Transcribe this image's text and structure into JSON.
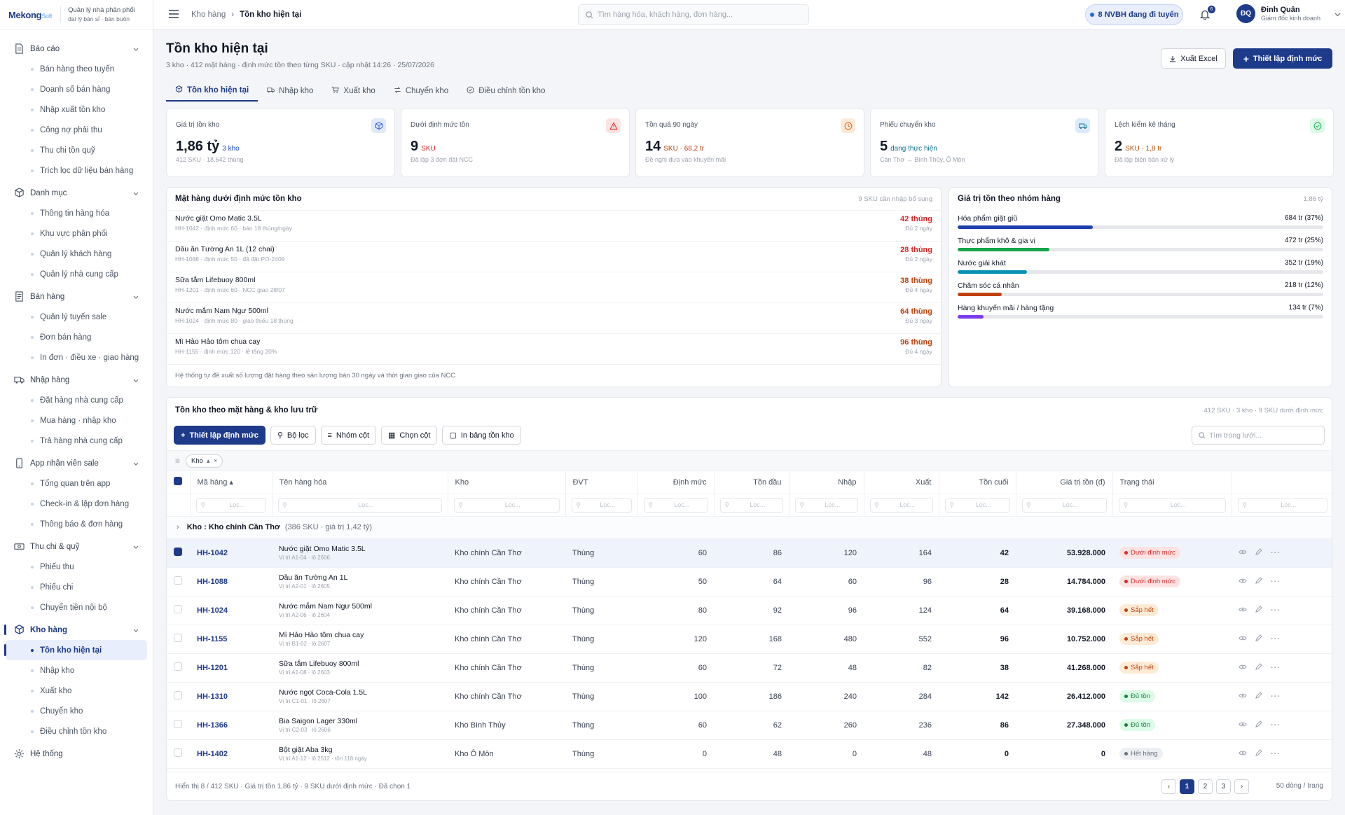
{
  "brand": {
    "name": "Mekong",
    "suffix": "Soft",
    "tag1": "Quản lý nhà phân phối",
    "tag2": "đại lý bán sỉ · bán buôn"
  },
  "sidebar": [
    {
      "label": "Báo cáo",
      "icon": "report-icon",
      "items": [
        "Bán hàng theo tuyến",
        "Doanh số bán hàng",
        "Nhập xuất tồn kho",
        "Công nợ phải thu",
        "Thu chi tồn quỹ",
        "Trích lọc dữ liệu bán hàng"
      ]
    },
    {
      "label": "Danh mục",
      "icon": "catalog-icon",
      "items": [
        "Thông tin hàng hóa",
        "Khu vực phân phối",
        "Quản lý khách hàng",
        "Quản lý nhà cung cấp"
      ]
    },
    {
      "label": "Bán hàng",
      "icon": "sales-icon",
      "items": [
        "Quản lý tuyến sale",
        "Đơn bán hàng",
        "In đơn · điều xe · giao hàng"
      ]
    },
    {
      "label": "Nhập hàng",
      "icon": "truck-icon",
      "items": [
        "Đặt hàng nhà cung cấp",
        "Mua hàng · nhập kho",
        "Trả hàng nhà cung cấp"
      ]
    },
    {
      "label": "App nhân viên sale",
      "icon": "phone-icon",
      "items": [
        "Tổng quan trên app",
        "Check-in & lập đơn hàng",
        "Thông báo & đơn hàng"
      ]
    },
    {
      "label": "Thu chi & quỹ",
      "icon": "cash-icon",
      "items": [
        "Phiếu thu",
        "Phiếu chi",
        "Chuyển tiền nội bộ"
      ]
    },
    {
      "label": "Kho hàng",
      "icon": "warehouse-icon",
      "active": true,
      "items": [
        "Tồn kho hiện tại",
        "Nhập kho",
        "Xuất kho",
        "Chuyển kho",
        "Điều chỉnh tồn kho"
      ]
    },
    {
      "label": "Hệ thống",
      "icon": "gear-icon",
      "items": []
    }
  ],
  "topbar": {
    "crumb1": "Kho hàng",
    "crumb2": "Tồn kho hiện tại",
    "search_placeholder": "Tìm hàng hóa, khách hàng, đơn hàng...",
    "status_pill": "8 NVBH đang đi tuyến",
    "notif_count": "6",
    "user_initials": "ĐQ",
    "user_name": "Đinh Quân",
    "user_role": "Giám đốc kinh doanh"
  },
  "page": {
    "title": "Tồn kho hiện tại",
    "subtitle": "3 kho · 412 mặt hàng · định mức tồn theo từng SKU · cập nhật 14:26 · 25/07/2026",
    "export_label": "Xuất Excel",
    "setup_label": "Thiết lập định mức"
  },
  "tabs": [
    {
      "label": "Tồn kho hiện tại",
      "icon": "box-icon",
      "active": true
    },
    {
      "label": "Nhập kho",
      "icon": "truck-icon"
    },
    {
      "label": "Xuất kho",
      "icon": "cart-icon"
    },
    {
      "label": "Chuyển kho",
      "icon": "transfer-icon"
    },
    {
      "label": "Điều chỉnh tồn kho",
      "icon": "check-circle-icon"
    }
  ],
  "kpis": [
    {
      "label": "Giá trị tồn kho",
      "value": "1,86 tỷ",
      "unit": "3 kho",
      "unit_color": "#1d4ed8",
      "note": "412 SKU · 18.642 thùng",
      "icon": "box-icon",
      "icon_bg": "#e0e9fb",
      "icon_color": "#1d4ed8"
    },
    {
      "label": "Dưới định mức tồn",
      "value": "9",
      "unit": "SKU",
      "unit_color": "#dc2626",
      "note": "Đã lập 3 đơn đặt NCC",
      "icon": "warning-icon",
      "icon_bg": "#fde2e2",
      "icon_color": "#dc2626"
    },
    {
      "label": "Tồn quá 90 ngày",
      "value": "14",
      "unit": "SKU · 68,2 tr",
      "unit_color": "#c2410c",
      "note": "Đề nghị đưa vào khuyến mãi",
      "icon": "clock-icon",
      "icon_bg": "#fde9d7",
      "icon_color": "#ea580c"
    },
    {
      "label": "Phiếu chuyển kho",
      "value": "5",
      "unit": "đang thực hiện",
      "unit_color": "#0e7490",
      "note": "Cần Thơ → Bình Thủy, Ô Môn",
      "icon": "truck-icon",
      "icon_bg": "#dbeafe",
      "icon_color": "#0e7490"
    },
    {
      "label": "Lệch kiểm kê tháng",
      "value": "2",
      "unit": "SKU · 1,8 tr",
      "unit_color": "#b45309",
      "note": "Đã lập biên bản xử lý",
      "icon": "check-circle-icon",
      "icon_bg": "#dcfce7",
      "icon_color": "#16a34a"
    }
  ],
  "below_min": {
    "title": "Mặt hàng dưới định mức tồn kho",
    "right": "9 SKU cần nhập bổ sung",
    "rows": [
      {
        "name": "Nước giặt Omo Matic 3.5L",
        "detail": "HH-1042 · định mức 60 · bán 18 thùng/ngày",
        "qty": "42 thùng",
        "days": "Đủ 2 ngày",
        "color": "#dc2626"
      },
      {
        "name": "Dầu ăn Tường An 1L (12 chai)",
        "detail": "HH-1088 · định mức 50 · đã đặt PO-2409",
        "qty": "28 thùng",
        "days": "Đủ 2 ngày",
        "color": "#dc2626"
      },
      {
        "name": "Sữa tắm Lifebuoy 800ml",
        "detail": "HH-1201 · định mức 60 · NCC giao 28/07",
        "qty": "38 thùng",
        "days": "Đủ 4 ngày",
        "color": "#c2410c"
      },
      {
        "name": "Nước mắm Nam Ngư 500ml",
        "detail": "HH-1024 · định mức 80 · giao thiếu 18 thùng",
        "qty": "64 thùng",
        "days": "Đủ 3 ngày",
        "color": "#c2410c"
      },
      {
        "name": "Mì Hảo Hảo tôm chua cay",
        "detail": "HH-1155 · định mức 120 · lễ tăng 20%",
        "qty": "96 thùng",
        "days": "Đủ 4 ngày",
        "color": "#c2410c"
      }
    ],
    "footer": "Hệ thống tự đề xuất số lượng đặt hàng theo sản lượng bán 30 ngày và thời gian giao của NCC"
  },
  "by_category": {
    "title": "Giá trị tồn theo nhóm hàng",
    "total": "1,86 tỷ",
    "rows": [
      {
        "name": "Hóa phẩm giặt giũ",
        "value": "684 tr (37%)",
        "pct": 37,
        "color": "#1e40af"
      },
      {
        "name": "Thực phẩm khô & gia vị",
        "value": "472 tr (25%)",
        "pct": 25,
        "color": "#16a34a"
      },
      {
        "name": "Nước giải khát",
        "value": "352 tr (19%)",
        "pct": 19,
        "color": "#0891b2"
      },
      {
        "name": "Chăm sóc cá nhân",
        "value": "218 tr (12%)",
        "pct": 12,
        "color": "#c2410c"
      },
      {
        "name": "Hàng khuyến mãi / hàng tặng",
        "value": "134 tr (7%)",
        "pct": 7,
        "color": "#7c3aed"
      }
    ]
  },
  "grid": {
    "title": "Tồn kho theo mặt hàng & kho lưu trữ",
    "right": "412 SKU · 3 kho · 9 SKU dưới định mức",
    "toolbar": [
      "Thiết lập định mức",
      "Bộ lọc",
      "Nhóm cột",
      "Chọn cột",
      "In bảng tồn kho"
    ],
    "search_placeholder": "Tìm trong lưới...",
    "group_chip": "Kho",
    "filter_placeholder": "Lọc...",
    "columns": [
      "Mã hàng",
      "Tên hàng hóa",
      "Kho",
      "ĐVT",
      "Định mức",
      "Tồn đầu",
      "Nhập",
      "Xuất",
      "Tồn cuối",
      "Giá trị tồn (đ)",
      "Trạng thái"
    ],
    "group_label": "Kho : Kho chính Cần Thơ",
    "group_meta": "(386 SKU · giá trị 1,42 tỷ)",
    "rows": [
      {
        "code": "HH-1042",
        "name": "Nước giặt Omo Matic 3.5L",
        "loc": "Vị trí A1-04 · lô 2606",
        "wh": "Kho chính Cần Thơ",
        "unit": "Thùng",
        "min": "60",
        "open": "86",
        "in": "120",
        "out": "164",
        "close": "42",
        "value": "53.928.000",
        "status": "Dưới định mức",
        "st": "red",
        "selected": true
      },
      {
        "code": "HH-1088",
        "name": "Dầu ăn Tường An 1L",
        "loc": "Vị trí A2-01 · lô 2605",
        "wh": "Kho chính Cần Thơ",
        "unit": "Thùng",
        "min": "50",
        "open": "64",
        "in": "60",
        "out": "96",
        "close": "28",
        "value": "14.784.000",
        "status": "Dưới định mức",
        "st": "red"
      },
      {
        "code": "HH-1024",
        "name": "Nước mắm Nam Ngư 500ml",
        "loc": "Vị trí A2-06 · lô 2604",
        "wh": "Kho chính Cần Thơ",
        "unit": "Thùng",
        "min": "80",
        "open": "92",
        "in": "96",
        "out": "124",
        "close": "64",
        "value": "39.168.000",
        "status": "Sắp hết",
        "st": "orange"
      },
      {
        "code": "HH-1155",
        "name": "Mì Hảo Hảo tôm chua cay",
        "loc": "Vị trí B1-02 · lô 2607",
        "wh": "Kho chính Cần Thơ",
        "unit": "Thùng",
        "min": "120",
        "open": "168",
        "in": "480",
        "out": "552",
        "close": "96",
        "value": "10.752.000",
        "status": "Sắp hết",
        "st": "orange"
      },
      {
        "code": "HH-1201",
        "name": "Sữa tắm Lifebuoy 800ml",
        "loc": "Vị trí A1-08 · lô 2603",
        "wh": "Kho chính Cần Thơ",
        "unit": "Thùng",
        "min": "60",
        "open": "72",
        "in": "48",
        "out": "82",
        "close": "38",
        "value": "41.268.000",
        "status": "Sắp hết",
        "st": "orange"
      },
      {
        "code": "HH-1310",
        "name": "Nước ngọt Coca-Cola 1.5L",
        "loc": "Vị trí C1-01 · lô 2607",
        "wh": "Kho chính Cần Thơ",
        "unit": "Thùng",
        "min": "100",
        "open": "186",
        "in": "240",
        "out": "284",
        "close": "142",
        "value": "26.412.000",
        "status": "Đủ tồn",
        "st": "green"
      },
      {
        "code": "HH-1366",
        "name": "Bia Saigon Lager 330ml",
        "loc": "Vị trí C2-03 · lô 2606",
        "wh": "Kho Bình Thủy",
        "unit": "Thùng",
        "min": "60",
        "open": "62",
        "in": "260",
        "out": "236",
        "close": "86",
        "value": "27.348.000",
        "status": "Đủ tồn",
        "st": "green"
      },
      {
        "code": "HH-1402",
        "name": "Bột giặt Aba 3kg",
        "loc": "Vị trí A1-12 · lô 2512 · tồn 118 ngày",
        "wh": "Kho Ô Môn",
        "unit": "Thùng",
        "min": "0",
        "open": "48",
        "in": "0",
        "out": "48",
        "close": "0",
        "value": "0",
        "status": "Hết hàng",
        "st": "gray"
      }
    ],
    "footer": "Hiển thị 8 / 412 SKU · Giá trị tồn 1,86 tỷ · 9 SKU dưới định mức · Đã chọn 1",
    "pages": [
      "‹",
      "1",
      "2",
      "3",
      "›"
    ],
    "page_size": "50 dòng / trang"
  }
}
